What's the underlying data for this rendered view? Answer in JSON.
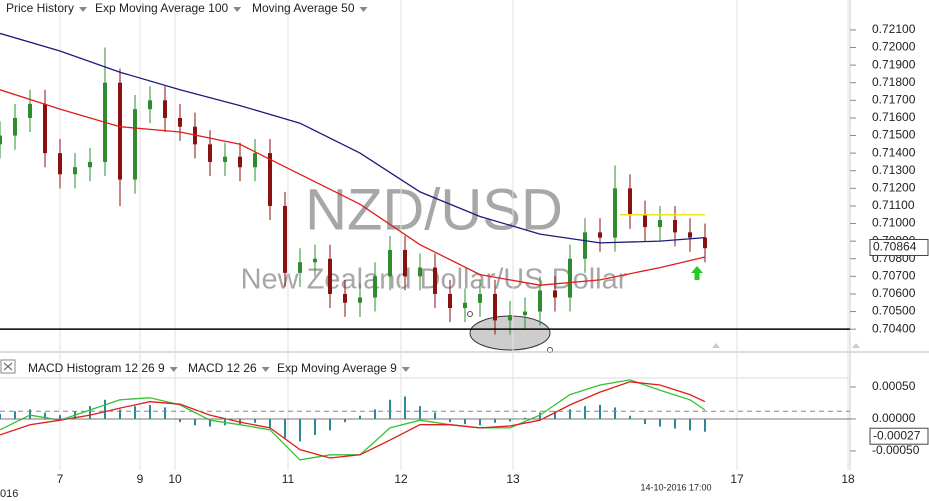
{
  "chart_data": [
    {
      "type": "candlestick",
      "title": "NZD/USD",
      "subtitle": "New Zealand Dollar/US Dollar",
      "candles": {
        "name": "Price History",
        "color_up": "#2e8b2e",
        "color_down": "#8b1010",
        "x": [
          0,
          3,
          6,
          9,
          12,
          15,
          18,
          21,
          24,
          27,
          30,
          33,
          36,
          39,
          42,
          45,
          48,
          51,
          54,
          57,
          60,
          63,
          66,
          69,
          72,
          75,
          78,
          81,
          84,
          87,
          90,
          93,
          96,
          99,
          102,
          105,
          108,
          111,
          114,
          117,
          120,
          123,
          126,
          129,
          132,
          135,
          138,
          141
        ],
        "open": [
          0.7145,
          0.715,
          0.716,
          0.7168,
          0.714,
          0.7128,
          0.7132,
          0.7135,
          0.718,
          0.7125,
          0.7165,
          0.717,
          0.716,
          0.7155,
          0.7145,
          0.7135,
          0.7138,
          0.7132,
          0.714,
          0.711,
          0.7072,
          0.7078,
          0.708,
          0.706,
          0.7055,
          0.7058,
          0.707,
          0.7085,
          0.707,
          0.7075,
          0.706,
          0.7052,
          0.7055,
          0.706,
          0.7045,
          0.7048,
          0.705,
          0.7062,
          0.7058,
          0.708,
          0.7095,
          0.7092,
          0.712,
          0.7105,
          0.7098,
          0.7102,
          0.7095,
          0.7092
        ],
        "high": [
          0.7158,
          0.7168,
          0.7176,
          0.7176,
          0.7148,
          0.714,
          0.7143,
          0.72,
          0.7188,
          0.7173,
          0.7178,
          0.7178,
          0.7168,
          0.7163,
          0.7153,
          0.7146,
          0.7146,
          0.7148,
          0.7148,
          0.7118,
          0.7086,
          0.7088,
          0.7088,
          0.7068,
          0.7066,
          0.7078,
          0.7093,
          0.7093,
          0.7083,
          0.7083,
          0.7068,
          0.7063,
          0.7068,
          0.7068,
          0.7056,
          0.7058,
          0.707,
          0.707,
          0.7088,
          0.7103,
          0.7103,
          0.7133,
          0.7128,
          0.7113,
          0.711,
          0.711,
          0.7103,
          0.71
        ],
        "low": [
          0.7137,
          0.7142,
          0.7152,
          0.7132,
          0.712,
          0.712,
          0.7124,
          0.7127,
          0.711,
          0.7117,
          0.7157,
          0.7152,
          0.7147,
          0.7137,
          0.7127,
          0.7127,
          0.7124,
          0.7124,
          0.7102,
          0.7064,
          0.7064,
          0.707,
          0.7052,
          0.7047,
          0.7047,
          0.705,
          0.7062,
          0.7062,
          0.7062,
          0.7052,
          0.7044,
          0.7044,
          0.7047,
          0.7037,
          0.7037,
          0.704,
          0.7042,
          0.705,
          0.705,
          0.7072,
          0.7084,
          0.7084,
          0.7097,
          0.709,
          0.709,
          0.7087,
          0.7084,
          0.7078
        ],
        "close": [
          0.715,
          0.716,
          0.7168,
          0.714,
          0.7128,
          0.7132,
          0.7135,
          0.718,
          0.7125,
          0.7165,
          0.717,
          0.716,
          0.7155,
          0.7145,
          0.7135,
          0.7138,
          0.7132,
          0.714,
          0.711,
          0.7072,
          0.7078,
          0.708,
          0.706,
          0.7055,
          0.7058,
          0.707,
          0.7085,
          0.707,
          0.7075,
          0.706,
          0.7052,
          0.7055,
          0.706,
          0.7045,
          0.7048,
          0.705,
          0.7062,
          0.7058,
          0.708,
          0.7095,
          0.7092,
          0.712,
          0.7105,
          0.7098,
          0.7102,
          0.7095,
          0.7092,
          0.7086
        ]
      },
      "series": [
        {
          "name": "Exp Moving Average 100",
          "color": "#1c1c7a",
          "x": [
            0,
            12,
            24,
            36,
            48,
            60,
            72,
            84,
            96,
            108,
            120,
            132,
            141
          ],
          "values": [
            0.7208,
            0.7198,
            0.7186,
            0.7176,
            0.7167,
            0.7157,
            0.714,
            0.7118,
            0.7104,
            0.7094,
            0.7089,
            0.709,
            0.7092
          ]
        },
        {
          "name": "Moving Average 50",
          "color": "#e01c1c",
          "x": [
            0,
            12,
            24,
            36,
            48,
            60,
            72,
            84,
            96,
            108,
            120,
            132,
            141
          ],
          "values": [
            0.7176,
            0.7165,
            0.7155,
            0.7152,
            0.7145,
            0.7128,
            0.7111,
            0.7088,
            0.7071,
            0.7065,
            0.7068,
            0.7075,
            0.7081
          ]
        }
      ],
      "hlines": [
        {
          "value": 0.704,
          "color": "#000000"
        },
        {
          "value": 0.7105,
          "x": [
            124,
            141
          ],
          "color": "#f0e020"
        }
      ],
      "xlim": [
        0,
        170
      ],
      "xticks": [
        {
          "value": 12,
          "label": "7"
        },
        {
          "value": 28,
          "label": "9"
        },
        {
          "value": 35,
          "label": "10"
        },
        {
          "value": 57.6,
          "label": "11"
        },
        {
          "value": 80.2,
          "label": "12"
        },
        {
          "value": 102.6,
          "label": "13"
        },
        {
          "value": 147.4,
          "label": "17"
        },
        {
          "value": 169.6,
          "label": "18"
        }
      ],
      "ylim": [
        0.7031,
        0.7227
      ],
      "yticks": [
        {
          "value": 0.721,
          "label": "0.72100"
        },
        {
          "value": 0.72,
          "label": "0.72000"
        },
        {
          "value": 0.719,
          "label": "0.71900"
        },
        {
          "value": 0.718,
          "label": "0.71800"
        },
        {
          "value": 0.717,
          "label": "0.71700"
        },
        {
          "value": 0.716,
          "label": "0.71600"
        },
        {
          "value": 0.715,
          "label": "0.71500"
        },
        {
          "value": 0.714,
          "label": "0.71400"
        },
        {
          "value": 0.713,
          "label": "0.71300"
        },
        {
          "value": 0.712,
          "label": "0.71200"
        },
        {
          "value": 0.711,
          "label": "0.71100"
        },
        {
          "value": 0.71,
          "label": "0.71000"
        },
        {
          "value": 0.709,
          "label": "0.70900"
        },
        {
          "value": 0.708,
          "label": "0.70800"
        },
        {
          "value": 0.707,
          "label": "0.70700"
        },
        {
          "value": 0.706,
          "label": "0.70600"
        },
        {
          "value": 0.705,
          "label": "0.70500"
        },
        {
          "value": 0.704,
          "label": "0.70400"
        }
      ],
      "last_value": {
        "value": 0.70864,
        "label": "0.70864"
      },
      "grid": true,
      "timestamp": "14-10-2016 17:00",
      "year": "016"
    },
    {
      "type": "macd",
      "series": [
        {
          "name": "MACD Histogram 12 26 9",
          "color": "#2a8a9a",
          "kind": "bar",
          "x": [
            0,
            3,
            6,
            9,
            12,
            15,
            18,
            21,
            24,
            27,
            30,
            33,
            36,
            39,
            42,
            45,
            48,
            51,
            54,
            57,
            60,
            63,
            66,
            69,
            72,
            75,
            78,
            81,
            84,
            87,
            90,
            93,
            96,
            99,
            102,
            105,
            108,
            111,
            114,
            117,
            120,
            123,
            126,
            129,
            132,
            135,
            138,
            141
          ],
          "values": [
            8e-05,
            0.00012,
            0.00015,
            0.0001,
            6e-05,
            0.00012,
            0.0002,
            0.0003,
            0.00015,
            0.0002,
            0.00022,
            0.00018,
            -5e-05,
            -0.0001,
            -0.00012,
            -0.0001,
            -8e-05,
            -6e-05,
            -0.00015,
            -0.0003,
            -0.00035,
            -0.00025,
            -0.00018,
            -5e-05,
            5e-05,
            0.00015,
            0.0003,
            0.00035,
            0.0002,
            0.0001,
            -5e-05,
            -8e-05,
            -0.0001,
            -6e-05,
            -4e-05,
            2e-05,
            0.0001,
            0.00012,
            0.00015,
            0.0002,
            0.00022,
            0.00018,
            5e-05,
            -8e-05,
            -0.00012,
            -0.00015,
            -0.00018,
            -0.0002
          ]
        },
        {
          "name": "MACD 12 26",
          "color": "#33c433",
          "kind": "line",
          "x": [
            0,
            6,
            12,
            18,
            24,
            30,
            36,
            42,
            48,
            54,
            60,
            66,
            72,
            78,
            84,
            90,
            96,
            102,
            108,
            114,
            120,
            126,
            132,
            138,
            141
          ],
          "values": [
            -0.00017,
            6e-05,
            -2e-05,
            0.00014,
            0.0003,
            0.00033,
            0.00022,
            -2e-05,
            -9e-05,
            -0.00017,
            -0.00064,
            -0.00056,
            -0.00056,
            -0.00014,
            -2e-05,
            -9e-05,
            -0.00014,
            -0.00014,
            6e-05,
            0.00038,
            0.00053,
            0.00061,
            0.00045,
            0.0003,
            0.00014
          ]
        },
        {
          "name": "Exp Moving Average 9",
          "color": "#e01c1c",
          "kind": "line",
          "x": [
            0,
            6,
            12,
            18,
            24,
            30,
            36,
            42,
            48,
            54,
            60,
            66,
            72,
            78,
            84,
            90,
            96,
            102,
            108,
            114,
            120,
            126,
            132,
            138,
            141
          ],
          "values": [
            -0.00025,
            -9e-05,
            -2e-05,
            6e-05,
            0.00017,
            0.00027,
            0.00023,
            6e-05,
            -5e-05,
            -0.00014,
            -0.00048,
            -0.00061,
            -0.00056,
            -0.00033,
            -9e-05,
            -9e-05,
            -0.00014,
            -0.00011,
            -2e-05,
            0.00022,
            0.00042,
            0.00058,
            0.00053,
            0.00038,
            0.00027
          ]
        }
      ],
      "hlines": [
        {
          "value": 0,
          "color": "#777777"
        },
        {
          "value": 0.00012,
          "color": "#888888",
          "dashed": true
        }
      ],
      "xlim": [
        0,
        170
      ],
      "ylim": [
        -0.00072,
        0.00064
      ],
      "yticks": [
        {
          "value": 0.0005,
          "label": "0.00050"
        },
        {
          "value": 0,
          "label": "0.00000"
        },
        {
          "value": -0.0005,
          "label": "-0.00050"
        }
      ],
      "last_value": {
        "value": -0.00027,
        "label": "-0.00027"
      }
    }
  ]
}
